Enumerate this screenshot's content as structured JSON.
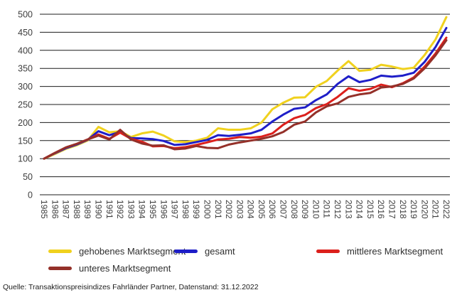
{
  "chart_data": {
    "type": "line",
    "title": "",
    "xlabel": "",
    "ylabel": "",
    "ylim": [
      0,
      500
    ],
    "ytick_step": 50,
    "grid": true,
    "legend_position": "bottom",
    "x": [
      1985,
      1986,
      1987,
      1988,
      1989,
      1990,
      1991,
      1992,
      1993,
      1994,
      1995,
      1996,
      1997,
      1998,
      1999,
      2000,
      2001,
      2002,
      2003,
      2004,
      2005,
      2006,
      2007,
      2008,
      2009,
      2010,
      2011,
      2012,
      2013,
      2014,
      2015,
      2016,
      2017,
      2018,
      2019,
      2020,
      2021,
      2022
    ],
    "series": [
      {
        "name": "gehobenes Marktsegment",
        "color": "#F0D11E",
        "values": [
          100,
          113,
          127,
          137,
          150,
          188,
          173,
          176,
          160,
          170,
          175,
          164,
          148,
          146,
          150,
          158,
          184,
          180,
          180,
          184,
          200,
          237,
          255,
          269,
          270,
          299,
          315,
          344,
          370,
          343,
          346,
          360,
          355,
          348,
          352,
          387,
          430,
          492
        ]
      },
      {
        "name": "gesamt",
        "color": "#1E1EC8",
        "values": [
          100,
          115,
          129,
          139,
          152,
          176,
          165,
          174,
          157,
          156,
          154,
          149,
          138,
          140,
          146,
          152,
          165,
          163,
          166,
          170,
          180,
          203,
          222,
          238,
          242,
          262,
          278,
          307,
          328,
          312,
          318,
          330,
          327,
          330,
          338,
          368,
          409,
          462
        ]
      },
      {
        "name": "mittleres Marktsegment",
        "color": "#DC201C",
        "values": [
          100,
          116,
          131,
          141,
          153,
          167,
          155,
          172,
          155,
          147,
          134,
          135,
          129,
          132,
          138,
          145,
          153,
          155,
          160,
          158,
          161,
          170,
          194,
          212,
          221,
          240,
          251,
          271,
          295,
          288,
          293,
          305,
          298,
          309,
          325,
          355,
          391,
          435
        ]
      },
      {
        "name": "unteres Marktsegment",
        "color": "#943029",
        "values": [
          100,
          116,
          131,
          141,
          153,
          164,
          153,
          180,
          153,
          142,
          136,
          137,
          126,
          128,
          135,
          130,
          129,
          139,
          145,
          150,
          155,
          162,
          174,
          194,
          203,
          228,
          245,
          253,
          271,
          278,
          282,
          297,
          300,
          307,
          322,
          350,
          386,
          428
        ]
      }
    ]
  },
  "footer": {
    "source": "Quelle: Transaktionspreisindizes Fahrländer Partner, Datenstand: 31.12.2022"
  }
}
